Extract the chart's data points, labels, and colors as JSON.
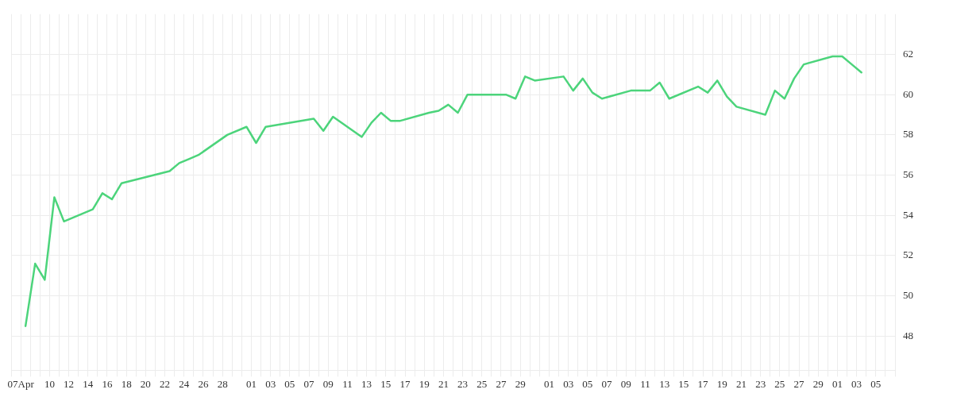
{
  "chart_data": {
    "type": "line",
    "color": "#4cd47b",
    "grid": true,
    "marker": "none",
    "line_style": "solid",
    "x": [
      "--04-07T12:00",
      "--04-08T12:00",
      "--04-09T12:00",
      "--04-10T12:00",
      "--04-11T12:00",
      "--04-14T12:00",
      "--04-15T12:00",
      "--04-16T12:00",
      "--04-17T12:00",
      "--04-22T12:00",
      "--04-23T12:00",
      "--04-24T12:00",
      "--04-25T12:00",
      "--04-28T12:00",
      "--04-30T12:00",
      "--05-01T12:00",
      "--05-02T12:00",
      "--05-07T12:00",
      "--05-08T12:00",
      "--05-09T12:00",
      "--05-12T12:00",
      "--05-13T12:00",
      "--05-14T12:00",
      "--05-15T12:00",
      "--05-16T12:00",
      "--05-19T12:00",
      "--05-20T12:00",
      "--05-21T12:00",
      "--05-22T12:00",
      "--05-23T12:00",
      "--05-27T12:00",
      "--05-28T12:00",
      "--05-29T12:00",
      "--05-30T12:00",
      "--06-02T12:00",
      "--06-03T12:00",
      "--06-04T12:00",
      "--06-05T12:00",
      "--06-06T12:00",
      "--06-09T12:00",
      "--06-10T12:00",
      "--06-11T12:00",
      "--06-12T12:00",
      "--06-13T12:00",
      "--06-16T12:00",
      "--06-17T12:00",
      "--06-18T12:00",
      "--06-19T12:00",
      "--06-20T12:00",
      "--06-23T12:00",
      "--06-24T12:00",
      "--06-25T12:00",
      "--06-26T12:00",
      "--06-27T12:00",
      "--06-30T12:00",
      "--07-01T12:00",
      "--07-02T12:00",
      "--07-03T12:00"
    ],
    "values": [
      48.5,
      51.6,
      50.8,
      54.9,
      53.7,
      54.3,
      55.1,
      54.8,
      55.6,
      56.2,
      56.6,
      56.8,
      57.0,
      58.0,
      58.4,
      57.6,
      58.4,
      58.8,
      58.2,
      58.9,
      57.9,
      58.6,
      59.1,
      58.7,
      58.7,
      59.1,
      59.2,
      59.5,
      59.1,
      60.0,
      60.0,
      59.8,
      60.9,
      60.7,
      60.9,
      60.2,
      60.8,
      60.1,
      59.8,
      60.2,
      60.2,
      60.2,
      60.6,
      59.8,
      60.4,
      60.1,
      60.7,
      59.9,
      59.4,
      59.0,
      60.2,
      59.8,
      60.8,
      61.5,
      61.9,
      61.9,
      61.5,
      61.1
    ],
    "xlim": [
      "--04-06",
      "--07-07"
    ],
    "xticks": [
      {
        "value": "--04-06",
        "label": null
      },
      {
        "value": "--04-07",
        "label": "07Apr"
      },
      {
        "value": "--04-08",
        "label": null
      },
      {
        "value": "--04-09",
        "label": null
      },
      {
        "value": "--04-10",
        "label": "10"
      },
      {
        "value": "--04-11",
        "label": null
      },
      {
        "value": "--04-12",
        "label": "12"
      },
      {
        "value": "--04-13",
        "label": null
      },
      {
        "value": "--04-14",
        "label": "14"
      },
      {
        "value": "--04-15",
        "label": null
      },
      {
        "value": "--04-16",
        "label": "16"
      },
      {
        "value": "--04-17",
        "label": null
      },
      {
        "value": "--04-18",
        "label": "18"
      },
      {
        "value": "--04-19",
        "label": null
      },
      {
        "value": "--04-20",
        "label": "20"
      },
      {
        "value": "--04-21",
        "label": null
      },
      {
        "value": "--04-22",
        "label": "22"
      },
      {
        "value": "--04-23",
        "label": null
      },
      {
        "value": "--04-24",
        "label": "24"
      },
      {
        "value": "--04-25",
        "label": null
      },
      {
        "value": "--04-26",
        "label": "26"
      },
      {
        "value": "--04-27",
        "label": null
      },
      {
        "value": "--04-28",
        "label": "28"
      },
      {
        "value": "--04-29",
        "label": null
      },
      {
        "value": "--04-30",
        "label": null
      },
      {
        "value": "--05-01",
        "label": "01"
      },
      {
        "value": "--05-02",
        "label": null
      },
      {
        "value": "--05-03",
        "label": "03"
      },
      {
        "value": "--05-04",
        "label": null
      },
      {
        "value": "--05-05",
        "label": "05"
      },
      {
        "value": "--05-06",
        "label": null
      },
      {
        "value": "--05-07",
        "label": "07"
      },
      {
        "value": "--05-08",
        "label": null
      },
      {
        "value": "--05-09",
        "label": "09"
      },
      {
        "value": "--05-10",
        "label": null
      },
      {
        "value": "--05-11",
        "label": "11"
      },
      {
        "value": "--05-12",
        "label": null
      },
      {
        "value": "--05-13",
        "label": "13"
      },
      {
        "value": "--05-14",
        "label": null
      },
      {
        "value": "--05-15",
        "label": "15"
      },
      {
        "value": "--05-16",
        "label": null
      },
      {
        "value": "--05-17",
        "label": "17"
      },
      {
        "value": "--05-18",
        "label": null
      },
      {
        "value": "--05-19",
        "label": "19"
      },
      {
        "value": "--05-20",
        "label": null
      },
      {
        "value": "--05-21",
        "label": "21"
      },
      {
        "value": "--05-22",
        "label": null
      },
      {
        "value": "--05-23",
        "label": "23"
      },
      {
        "value": "--05-24",
        "label": null
      },
      {
        "value": "--05-25",
        "label": "25"
      },
      {
        "value": "--05-26",
        "label": null
      },
      {
        "value": "--05-27",
        "label": "27"
      },
      {
        "value": "--05-28",
        "label": null
      },
      {
        "value": "--05-29",
        "label": "29"
      },
      {
        "value": "--05-30",
        "label": null
      },
      {
        "value": "--05-31",
        "label": null
      },
      {
        "value": "--06-01",
        "label": "01"
      },
      {
        "value": "--06-02",
        "label": null
      },
      {
        "value": "--06-03",
        "label": "03"
      },
      {
        "value": "--06-04",
        "label": null
      },
      {
        "value": "--06-05",
        "label": "05"
      },
      {
        "value": "--06-06",
        "label": null
      },
      {
        "value": "--06-07",
        "label": "07"
      },
      {
        "value": "--06-08",
        "label": null
      },
      {
        "value": "--06-09",
        "label": "09"
      },
      {
        "value": "--06-10",
        "label": null
      },
      {
        "value": "--06-11",
        "label": "11"
      },
      {
        "value": "--06-12",
        "label": null
      },
      {
        "value": "--06-13",
        "label": "13"
      },
      {
        "value": "--06-14",
        "label": null
      },
      {
        "value": "--06-15",
        "label": "15"
      },
      {
        "value": "--06-16",
        "label": null
      },
      {
        "value": "--06-17",
        "label": "17"
      },
      {
        "value": "--06-18",
        "label": null
      },
      {
        "value": "--06-19",
        "label": "19"
      },
      {
        "value": "--06-20",
        "label": null
      },
      {
        "value": "--06-21",
        "label": "21"
      },
      {
        "value": "--06-22",
        "label": null
      },
      {
        "value": "--06-23",
        "label": "23"
      },
      {
        "value": "--06-24",
        "label": null
      },
      {
        "value": "--06-25",
        "label": "25"
      },
      {
        "value": "--06-26",
        "label": null
      },
      {
        "value": "--06-27",
        "label": "27"
      },
      {
        "value": "--06-28",
        "label": null
      },
      {
        "value": "--06-29",
        "label": "29"
      },
      {
        "value": "--06-30",
        "label": null
      },
      {
        "value": "--07-01",
        "label": "01"
      },
      {
        "value": "--07-02",
        "label": null
      },
      {
        "value": "--07-03",
        "label": "03"
      },
      {
        "value": "--07-04",
        "label": null
      },
      {
        "value": "--07-05",
        "label": "05"
      },
      {
        "value": "--07-06",
        "label": null
      },
      {
        "value": "--07-07",
        "label": null
      }
    ],
    "ylim": [
      46.3,
      64
    ],
    "yticks": [
      48,
      50,
      52,
      54,
      56,
      58,
      60,
      62
    ]
  }
}
